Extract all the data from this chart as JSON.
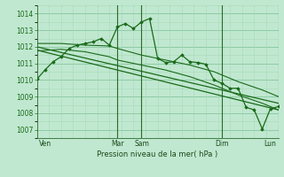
{
  "bg_color": "#c0e8d0",
  "grid_color_major": "#88c8a0",
  "grid_color_minor": "#a8d8b8",
  "line_color": "#1a6a1a",
  "xlabel": "Pression niveau de la mer( hPa )",
  "ylim": [
    1006.5,
    1014.5
  ],
  "yticks": [
    1007,
    1008,
    1009,
    1010,
    1011,
    1012,
    1013,
    1014
  ],
  "xlim": [
    0,
    60
  ],
  "vlines_x": [
    20,
    26,
    46,
    60
  ],
  "x_tick_labels": [
    "Ven",
    "Mar",
    "Sam",
    "Dim",
    "Lun"
  ],
  "x_tick_labels_pos": [
    2,
    20,
    26,
    46,
    58
  ],
  "series_main_x": [
    0,
    2,
    4,
    6,
    8,
    10,
    12,
    14,
    16,
    18,
    20,
    22,
    24,
    26,
    28,
    30,
    32,
    34,
    36,
    38,
    40,
    42,
    44,
    46,
    48,
    50,
    52,
    54,
    56,
    58,
    60
  ],
  "series_main_y": [
    1010.05,
    1010.6,
    1011.1,
    1011.4,
    1011.9,
    1012.1,
    1012.2,
    1012.3,
    1012.5,
    1012.1,
    1013.2,
    1013.4,
    1013.1,
    1013.5,
    1013.7,
    1011.3,
    1011.05,
    1011.1,
    1011.5,
    1011.1,
    1011.05,
    1010.95,
    1010.0,
    1009.8,
    1009.5,
    1009.5,
    1008.35,
    1008.2,
    1007.05,
    1008.25,
    1008.4
  ],
  "trend1_x": [
    0,
    60
  ],
  "trend1_y": [
    1012.0,
    1008.6
  ],
  "trend2_x": [
    0,
    60
  ],
  "trend2_y": [
    1011.8,
    1008.2
  ],
  "series_upper_x": [
    0,
    6,
    12,
    18,
    20,
    26,
    32,
    38,
    44,
    50,
    56,
    60
  ],
  "series_upper_y": [
    1012.2,
    1012.2,
    1012.1,
    1012.05,
    1011.9,
    1011.5,
    1011.2,
    1010.9,
    1010.5,
    1009.9,
    1009.4,
    1009.0
  ],
  "series_lower_x": [
    0,
    6,
    12,
    18,
    20,
    26,
    32,
    38,
    44,
    50,
    56,
    60
  ],
  "series_lower_y": [
    1011.75,
    1011.85,
    1011.7,
    1011.4,
    1011.2,
    1010.9,
    1010.6,
    1010.2,
    1009.7,
    1009.1,
    1008.6,
    1008.2
  ]
}
